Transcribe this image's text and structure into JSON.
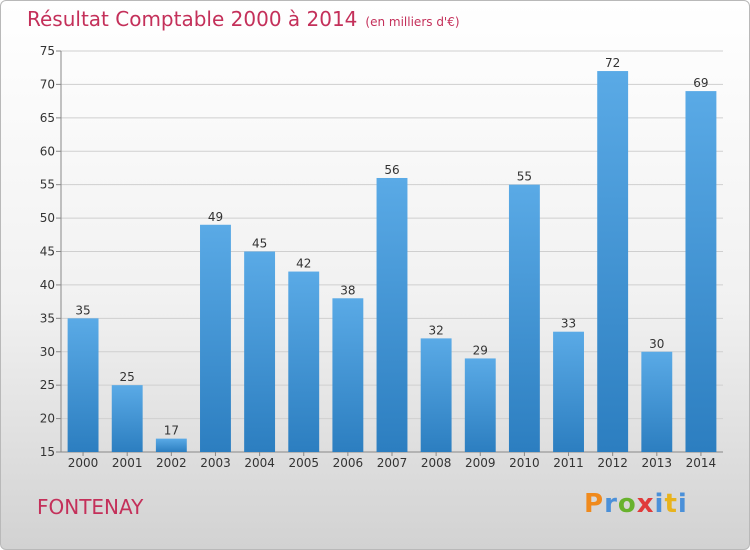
{
  "title": "Résultat Comptable 2000 à 2014",
  "subtitle": "(en milliers d'€)",
  "town": "FONTENAY",
  "logo": {
    "p": "P",
    "r": "r",
    "o": "o",
    "x": "x",
    "i": "i",
    "t": "t",
    "i2": "i"
  },
  "colors": {
    "title": "#c4305a",
    "bar_top": "#5aaae6",
    "bar_bottom": "#2c7ec0",
    "gridline": "#cfcfcf",
    "axis": "#888888",
    "text": "#333333"
  },
  "chart_data": {
    "type": "bar",
    "title": "Résultat Comptable 2000 à 2014",
    "subtitle": "(en milliers d'€)",
    "categories": [
      "2000",
      "2001",
      "2002",
      "2003",
      "2004",
      "2005",
      "2006",
      "2007",
      "2008",
      "2009",
      "2010",
      "2011",
      "2012",
      "2013",
      "2014"
    ],
    "values": [
      35,
      25,
      17,
      49,
      45,
      42,
      38,
      56,
      32,
      29,
      55,
      33,
      72,
      30,
      69
    ],
    "data_labels": [
      "35",
      "25",
      "17",
      "49",
      "45",
      "42",
      "38",
      "56",
      "32",
      "29",
      "55",
      "33",
      "72",
      "30",
      "69"
    ],
    "ylim": [
      15,
      75
    ],
    "yticks": [
      15,
      20,
      25,
      30,
      35,
      40,
      45,
      50,
      55,
      60,
      65,
      70,
      75
    ],
    "ytick_labels": [
      "15",
      "20",
      "25",
      "30",
      "35",
      "40",
      "45",
      "50",
      "55",
      "60",
      "65",
      "70",
      "75"
    ],
    "grid": true,
    "xlabel": "",
    "ylabel": ""
  }
}
